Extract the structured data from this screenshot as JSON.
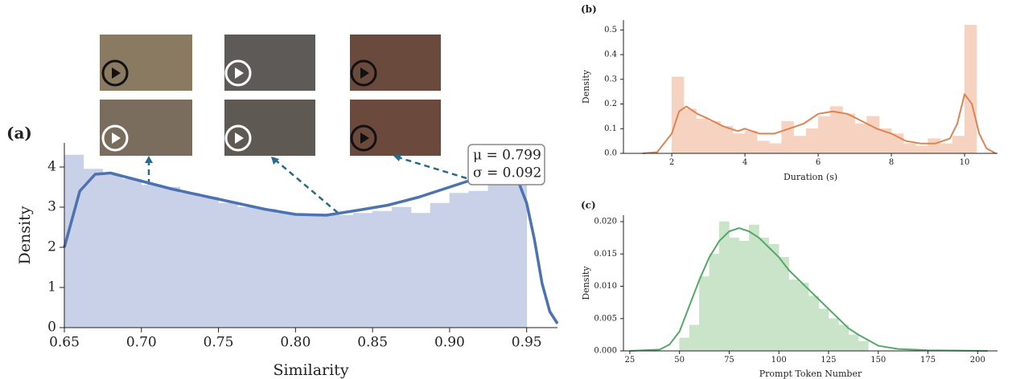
{
  "chart_data": [
    {
      "type": "histogram",
      "title": "(a)",
      "x_label": "Similarity",
      "y_label": "Density",
      "bins": [
        0.65,
        0.6625,
        0.675,
        0.6875,
        0.7,
        0.7125,
        0.725,
        0.7375,
        0.75,
        0.7625,
        0.775,
        0.7875,
        0.8,
        0.8125,
        0.825,
        0.8375,
        0.85,
        0.8625,
        0.875,
        0.8875,
        0.9,
        0.9125,
        0.925,
        0.9375,
        0.95
      ],
      "values": [
        4.3,
        3.95,
        3.8,
        3.7,
        3.55,
        3.5,
        3.35,
        3.25,
        3.1,
        3.0,
        2.95,
        2.85,
        2.8,
        2.8,
        2.8,
        2.85,
        2.9,
        3.0,
        2.85,
        3.1,
        3.35,
        3.4,
        3.6,
        3.95
      ],
      "color": "#c9d1e8",
      "line": {
        "x": [
          0.65,
          0.66,
          0.67,
          0.68,
          0.7,
          0.72,
          0.75,
          0.78,
          0.8,
          0.82,
          0.84,
          0.86,
          0.88,
          0.9,
          0.92,
          0.935,
          0.945,
          0.95,
          0.955,
          0.96,
          0.965,
          0.97
        ],
        "values": [
          2.0,
          3.4,
          3.82,
          3.85,
          3.65,
          3.45,
          3.2,
          2.95,
          2.82,
          2.8,
          2.92,
          3.05,
          3.25,
          3.5,
          3.75,
          3.85,
          3.6,
          3.1,
          2.2,
          1.1,
          0.4,
          0.1
        ],
        "color": "#4c72b0"
      },
      "annotations": [
        "μ = 0.799",
        "σ = 0.092"
      ],
      "xlim": [
        0.65,
        0.97
      ],
      "ylim": [
        0,
        4.6
      ],
      "xticks": [
        {
          "value": 0.65,
          "label": "0.65"
        },
        {
          "value": 0.7,
          "label": "0.70"
        },
        {
          "value": 0.75,
          "label": "0.75"
        },
        {
          "value": 0.8,
          "label": "0.80"
        },
        {
          "value": 0.85,
          "label": "0.85"
        },
        {
          "value": 0.9,
          "label": "0.90"
        },
        {
          "value": 0.95,
          "label": "0.95"
        }
      ],
      "yticks": [
        0,
        1,
        2,
        3,
        4
      ]
    },
    {
      "type": "histogram",
      "title": "(b)",
      "x_label": "Duration (s)",
      "y_label": "Density",
      "bins": [
        2,
        2.33,
        2.67,
        3,
        3.33,
        3.67,
        4,
        4.33,
        4.67,
        5,
        5.33,
        5.67,
        6,
        6.33,
        6.67,
        7,
        7.33,
        7.67,
        8,
        8.33,
        8.67,
        9,
        9.33,
        9.67,
        10,
        10.33
      ],
      "values": [
        0.31,
        0.18,
        0.14,
        0.13,
        0.11,
        0.08,
        0.09,
        0.05,
        0.04,
        0.13,
        0.07,
        0.1,
        0.15,
        0.19,
        0.16,
        0.12,
        0.15,
        0.1,
        0.08,
        0.04,
        0.03,
        0.06,
        0.04,
        0.07,
        0.52
      ],
      "color": "#f6d3c0",
      "line": {
        "x": [
          1.2,
          1.6,
          2,
          2.2,
          2.4,
          2.7,
          3,
          3.4,
          3.8,
          4,
          4.4,
          4.8,
          5.2,
          5.6,
          6,
          6.4,
          6.8,
          7.2,
          7.6,
          8,
          8.4,
          8.8,
          9.2,
          9.6,
          9.8,
          10,
          10.2,
          10.4,
          10.6,
          10.85
        ],
        "values": [
          0,
          0.005,
          0.08,
          0.17,
          0.19,
          0.16,
          0.14,
          0.11,
          0.09,
          0.1,
          0.08,
          0.08,
          0.1,
          0.12,
          0.16,
          0.17,
          0.16,
          0.13,
          0.1,
          0.08,
          0.05,
          0.04,
          0.04,
          0.06,
          0.12,
          0.24,
          0.2,
          0.08,
          0.02,
          0
        ],
        "color": "#dd8452"
      },
      "xlim": [
        0.68,
        10.9
      ],
      "ylim": [
        0,
        0.54
      ],
      "xticks": [
        2,
        4,
        6,
        8,
        10
      ],
      "yticks": [
        {
          "value": 0,
          "label": "0.0"
        },
        0.1,
        0.2,
        0.3,
        0.4,
        0.5
      ]
    },
    {
      "type": "histogram",
      "title": "(c)",
      "x_label": "Prompt Token Number",
      "y_label": "Density",
      "bins": [
        50,
        55,
        60,
        65,
        70,
        75,
        80,
        85,
        90,
        95,
        100,
        105,
        110,
        115,
        120,
        125,
        130,
        135,
        140,
        145
      ],
      "values": [
        0.002,
        0.004,
        0.0115,
        0.015,
        0.02,
        0.0175,
        0.017,
        0.0195,
        0.0175,
        0.0165,
        0.0145,
        0.011,
        0.0105,
        0.0085,
        0.0065,
        0.005,
        0.004,
        0.0025,
        0.0015
      ],
      "color": "#c9e4c9",
      "line": {
        "x": [
          25,
          40,
          45,
          50,
          55,
          60,
          65,
          70,
          75,
          80,
          85,
          90,
          95,
          100,
          105,
          110,
          115,
          120,
          125,
          130,
          135,
          140,
          150,
          160,
          175,
          205
        ],
        "values": [
          0,
          0.0002,
          0.001,
          0.003,
          0.007,
          0.011,
          0.0145,
          0.017,
          0.0185,
          0.019,
          0.0185,
          0.0175,
          0.016,
          0.0145,
          0.0125,
          0.011,
          0.0095,
          0.008,
          0.0065,
          0.005,
          0.0035,
          0.0025,
          0.0008,
          0.0003,
          0.0001,
          0
        ],
        "color": "#55a868"
      },
      "xlim": [
        21.8,
        210
      ],
      "ylim": [
        0,
        0.021
      ],
      "xticks": [
        25,
        50,
        75,
        100,
        125,
        150,
        175,
        200
      ],
      "yticks": [
        {
          "value": 0,
          "label": "0.000"
        },
        {
          "value": 0.005,
          "label": "0.005"
        },
        {
          "value": 0.01,
          "label": "0.010"
        },
        {
          "value": 0.015,
          "label": "0.015"
        },
        {
          "value": 0.02,
          "label": "0.020"
        }
      ]
    }
  ]
}
